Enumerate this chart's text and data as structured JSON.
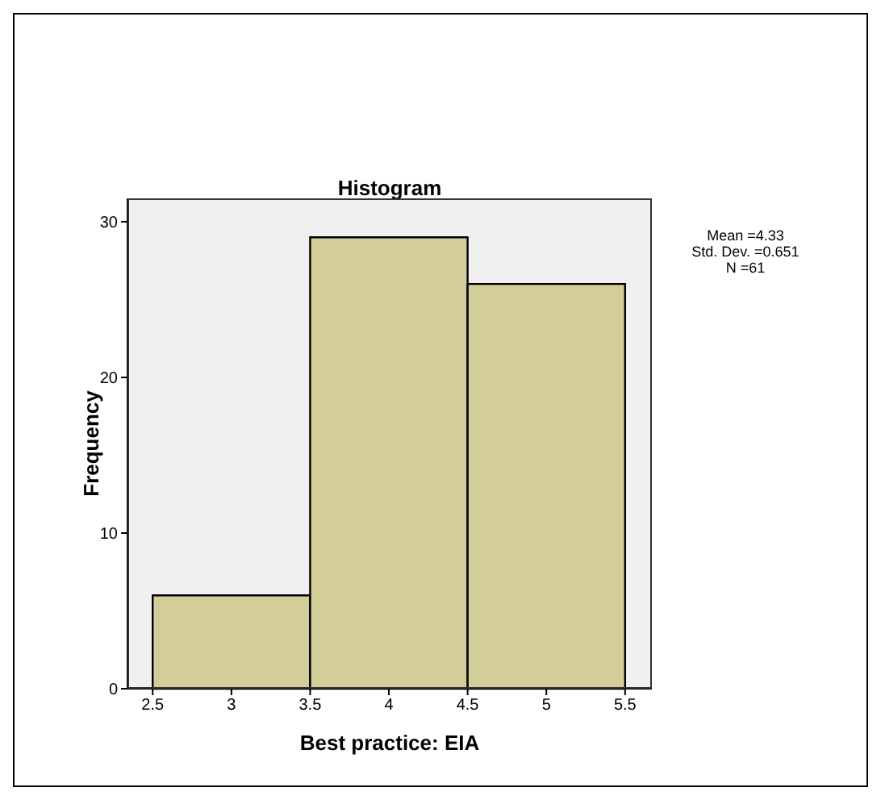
{
  "chart_data": {
    "type": "histogram",
    "title": "Histogram",
    "xlabel": "Best practice: EIA",
    "ylabel": "Frequency",
    "bins": [
      2.5,
      3.5,
      4.5,
      5.5
    ],
    "values": [
      6,
      29,
      26
    ],
    "color": "#d3ce99",
    "xlim": [
      2.34,
      5.67
    ],
    "xticks": [
      2.5,
      3,
      3.5,
      4,
      4.5,
      5,
      5.5
    ],
    "ylim": [
      0,
      31.5
    ],
    "yticks": [
      0,
      10,
      20,
      30
    ],
    "annotations": [
      "Mean =4.33",
      "Std. Dev. =0.651",
      "N =61"
    ]
  }
}
